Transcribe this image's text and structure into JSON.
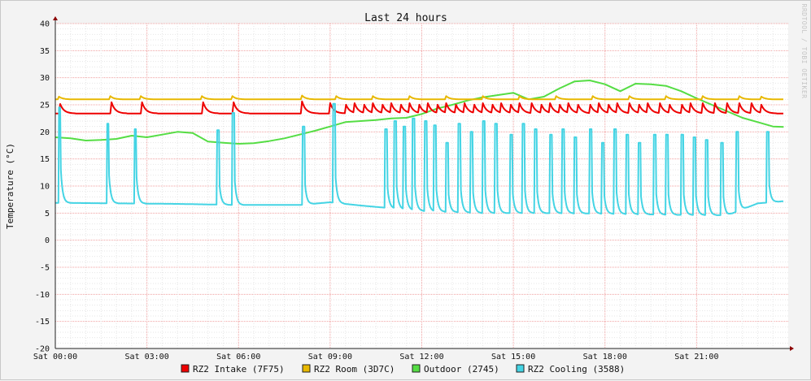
{
  "chart_data": {
    "type": "line",
    "title": "Last 24 hours",
    "ylabel": "Temperature (°C)",
    "xlabel": "",
    "watermark": "RRDTOOL / TOBI OETIKER",
    "ylim": [
      -20,
      40
    ],
    "y_ticks": [
      -20,
      -15,
      -10,
      -5,
      0,
      5,
      10,
      15,
      20,
      25,
      30,
      35,
      40
    ],
    "x_range_hours": [
      0,
      24
    ],
    "x_ticks": [
      {
        "hour": 0,
        "label": "Sat 00:00"
      },
      {
        "hour": 3,
        "label": "Sat 03:00"
      },
      {
        "hour": 6,
        "label": "Sat 06:00"
      },
      {
        "hour": 9,
        "label": "Sat 09:00"
      },
      {
        "hour": 12,
        "label": "Sat 12:00"
      },
      {
        "hour": 15,
        "label": "Sat 15:00"
      },
      {
        "hour": 18,
        "label": "Sat 18:00"
      },
      {
        "hour": 21,
        "label": "Sat 21:00"
      }
    ],
    "grid": true,
    "legend_position": "bottom",
    "series": [
      {
        "name": "RZ2 Intake (7F75)",
        "color": "#ee0000",
        "baseline": 23.4,
        "spike_peak": 25.3,
        "spike_hours": [
          0.15,
          1.85,
          2.85,
          4.85,
          5.85,
          8.1,
          9.0,
          9.5,
          9.8,
          10.1,
          10.4,
          10.7,
          11.0,
          11.3,
          11.6,
          11.9,
          12.2,
          12.5,
          12.8,
          13.1,
          13.4,
          13.7,
          14.0,
          14.3,
          14.6,
          14.9,
          15.2,
          15.6,
          15.9,
          16.2,
          16.5,
          16.8,
          17.1,
          17.5,
          17.8,
          18.1,
          18.4,
          18.8,
          19.1,
          19.4,
          19.8,
          20.1,
          20.5,
          20.8,
          21.2,
          21.6,
          22.0,
          22.4,
          22.8,
          23.1
        ]
      },
      {
        "name": "RZ2 Room (3D7C)",
        "color": "#e8b800",
        "baseline": 26.0,
        "spike_peak": 26.6,
        "spike_hours": [
          0.1,
          1.8,
          2.8,
          4.8,
          5.8,
          8.1,
          9.2,
          10.4,
          11.6,
          12.8,
          14.0,
          15.2,
          16.4,
          17.6,
          18.8,
          20.0,
          21.2,
          22.4,
          23.1
        ]
      },
      {
        "name": "Outdoor (2745)",
        "color": "#55dd44",
        "points": [
          [
            0,
            19.0
          ],
          [
            0.5,
            18.8
          ],
          [
            1,
            18.4
          ],
          [
            1.5,
            18.5
          ],
          [
            2,
            18.7
          ],
          [
            2.5,
            19.3
          ],
          [
            3,
            19.0
          ],
          [
            3.5,
            19.5
          ],
          [
            4,
            20.0
          ],
          [
            4.5,
            19.8
          ],
          [
            5,
            18.2
          ],
          [
            5.5,
            18.0
          ],
          [
            6,
            17.8
          ],
          [
            6.5,
            17.9
          ],
          [
            7,
            18.3
          ],
          [
            7.5,
            18.8
          ],
          [
            8,
            19.5
          ],
          [
            8.5,
            20.2
          ],
          [
            9,
            21.0
          ],
          [
            9.5,
            21.8
          ],
          [
            10,
            22.0
          ],
          [
            10.5,
            22.2
          ],
          [
            11,
            22.5
          ],
          [
            11.5,
            22.6
          ],
          [
            12,
            23.3
          ],
          [
            12.5,
            24.3
          ],
          [
            13,
            25.0
          ],
          [
            13.5,
            25.8
          ],
          [
            14,
            26.4
          ],
          [
            14.5,
            26.8
          ],
          [
            15,
            27.2
          ],
          [
            15.5,
            26.0
          ],
          [
            16,
            26.5
          ],
          [
            16.5,
            28.0
          ],
          [
            17,
            29.3
          ],
          [
            17.5,
            29.5
          ],
          [
            18,
            28.8
          ],
          [
            18.5,
            27.5
          ],
          [
            19,
            28.9
          ],
          [
            19.5,
            28.8
          ],
          [
            20,
            28.5
          ],
          [
            20.5,
            27.5
          ],
          [
            21,
            26.2
          ],
          [
            21.5,
            25.0
          ],
          [
            22,
            23.8
          ],
          [
            22.5,
            22.6
          ],
          [
            23,
            21.8
          ],
          [
            23.5,
            21.0
          ],
          [
            23.85,
            20.9
          ]
        ]
      },
      {
        "name": "RZ2 Cooling (3588)",
        "color": "#44d4e4",
        "baseline_points": [
          [
            0,
            6.9
          ],
          [
            2,
            6.8
          ],
          [
            4,
            6.7
          ],
          [
            6,
            6.5
          ],
          [
            8,
            6.5
          ],
          [
            9,
            7.0
          ],
          [
            10,
            6.4
          ],
          [
            12,
            5.4
          ],
          [
            14,
            5.0
          ],
          [
            16,
            5.0
          ],
          [
            18,
            4.9
          ],
          [
            20,
            4.7
          ],
          [
            22,
            4.6
          ],
          [
            23,
            6.8
          ],
          [
            23.85,
            7.2
          ]
        ],
        "spikes": [
          [
            0.12,
            24.5
          ],
          [
            1.7,
            21.5
          ],
          [
            2.6,
            20.5
          ],
          [
            5.3,
            20.3
          ],
          [
            5.8,
            23.5
          ],
          [
            8.1,
            21.0
          ],
          [
            9.1,
            25.2
          ],
          [
            10.8,
            20.5
          ],
          [
            11.1,
            22.0
          ],
          [
            11.4,
            21.0
          ],
          [
            11.7,
            22.5
          ],
          [
            12.1,
            22.0
          ],
          [
            12.4,
            21.2
          ],
          [
            12.8,
            18.0
          ],
          [
            13.2,
            21.5
          ],
          [
            13.6,
            20.0
          ],
          [
            14.0,
            22.0
          ],
          [
            14.4,
            21.5
          ],
          [
            14.9,
            19.5
          ],
          [
            15.3,
            21.5
          ],
          [
            15.7,
            20.5
          ],
          [
            16.2,
            19.5
          ],
          [
            16.6,
            20.5
          ],
          [
            17.0,
            19.0
          ],
          [
            17.5,
            20.5
          ],
          [
            17.9,
            18.0
          ],
          [
            18.3,
            20.5
          ],
          [
            18.7,
            19.5
          ],
          [
            19.1,
            18.0
          ],
          [
            19.6,
            19.5
          ],
          [
            20.0,
            19.5
          ],
          [
            20.5,
            19.5
          ],
          [
            20.9,
            19.0
          ],
          [
            21.3,
            18.5
          ],
          [
            21.8,
            18.0
          ],
          [
            22.3,
            20.0
          ],
          [
            23.3,
            20.0
          ]
        ]
      }
    ]
  }
}
